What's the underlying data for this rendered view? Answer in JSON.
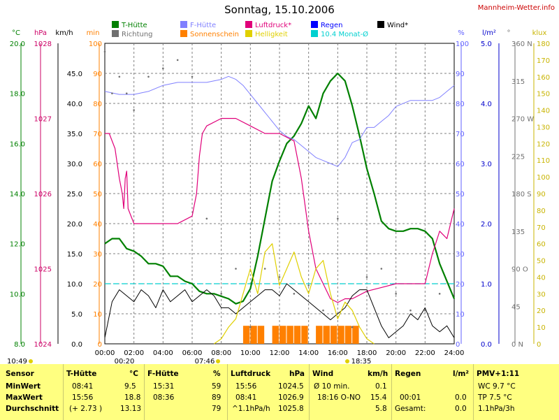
{
  "header": {
    "title": "Sonntag, 15.10.2006",
    "credit": "Mannheim-Wetter.info"
  },
  "legend": [
    {
      "label": "T-Hütte",
      "color": "#008000"
    },
    {
      "label": "Richtung",
      "color": "#707070"
    },
    {
      "label": "F-Hütte",
      "color": "#8080ff"
    },
    {
      "label": "Sonnenschein",
      "color": "#ff8000"
    },
    {
      "label": "Luftdruck*",
      "color": "#e0007a"
    },
    {
      "label": "Helligkeit",
      "color": "#e0d000"
    },
    {
      "label": "Regen",
      "color": "#0000ff"
    },
    {
      "label": "10.4 Monat-Ø",
      "color": "#00d0d0"
    },
    {
      "label": "Wind*",
      "color": "#000000"
    }
  ],
  "axes": {
    "unit_temp": "°C",
    "unit_hpa": "hPa",
    "unit_kmh": "km/h",
    "unit_min": "min",
    "unit_pct": "%",
    "unit_rain": "l/m²",
    "unit_deg": "°",
    "unit_klux": "klux",
    "temp_ticks": [
      "20.0",
      "18.0",
      "16.0",
      "14.0",
      "12.0",
      "10.0",
      "8.0"
    ],
    "hpa_ticks": [
      "1028",
      "1027",
      "1026",
      "1025",
      "1024"
    ],
    "kmh_ticks": [
      "45.0",
      "40.0",
      "35.0",
      "30.0",
      "25.0",
      "20.0",
      "15.0",
      "10.0",
      "5.0",
      "0.0"
    ],
    "min_ticks": [
      "100",
      "90",
      "80",
      "70",
      "60",
      "50",
      "40",
      "30",
      "20",
      "10",
      "0"
    ],
    "pct_ticks": [
      "100",
      "90",
      "80",
      "70",
      "60",
      "50",
      "40",
      "30",
      "20",
      "10",
      "0"
    ],
    "rain_ticks": [
      "5.0",
      "4.0",
      "3.0",
      "2.0",
      "1.0",
      "0.0"
    ],
    "deg_ticks": [
      "360 N",
      "315",
      "270 W",
      "225",
      "180 S",
      "135",
      "90 O",
      "45",
      "0 N"
    ],
    "klux_ticks": [
      "180",
      "170",
      "160",
      "150",
      "140",
      "130",
      "120",
      "110",
      "100",
      "90",
      "80",
      "70",
      "60",
      "50",
      "40",
      "30",
      "20",
      "10",
      "0"
    ],
    "time_ticks": [
      "00:00",
      "02:00",
      "04:00",
      "06:00",
      "08:00",
      "10:00",
      "12:00",
      "14:00",
      "16:00",
      "18:00",
      "20:00",
      "22:00",
      "24:00"
    ],
    "sun_labels": {
      "sunrise_left": "10:49",
      "dawn": "00:20",
      "sunrise": "07:46",
      "sunset": "18:35"
    }
  },
  "chart_data": {
    "type": "line",
    "x_unit": "hours",
    "xlim": [
      0,
      24
    ],
    "month_avg_temp": 10.4,
    "series": [
      {
        "name": "T-Hütte",
        "unit": "°C",
        "ylim": [
          8,
          20
        ],
        "x": [
          0,
          0.5,
          1,
          1.5,
          2,
          2.5,
          3,
          3.5,
          4,
          4.5,
          5,
          5.5,
          6,
          6.5,
          7,
          7.5,
          8,
          8.5,
          9,
          9.5,
          10,
          10.5,
          11,
          11.5,
          12,
          12.5,
          13,
          13.5,
          14,
          14.5,
          15,
          15.5,
          16,
          16.5,
          17,
          17.5,
          18,
          18.5,
          19,
          19.5,
          20,
          20.5,
          21,
          21.5,
          22,
          22.5,
          23,
          23.5,
          24
        ],
        "y": [
          12.0,
          12.2,
          12.2,
          11.8,
          11.7,
          11.5,
          11.2,
          11.2,
          11.1,
          10.7,
          10.7,
          10.5,
          10.4,
          10.1,
          10.0,
          10.0,
          9.9,
          9.8,
          9.6,
          9.7,
          10.2,
          11.5,
          13.0,
          14.5,
          15.3,
          16.0,
          16.3,
          16.8,
          17.5,
          17.0,
          18.0,
          18.5,
          18.8,
          18.5,
          17.5,
          16.3,
          15.0,
          14.0,
          12.9,
          12.6,
          12.5,
          12.5,
          12.6,
          12.6,
          12.5,
          12.2,
          11.2,
          10.5,
          9.8
        ]
      },
      {
        "name": "F-Hütte",
        "unit": "%",
        "ylim": [
          0,
          100
        ],
        "x": [
          0,
          1,
          2,
          3,
          4,
          5,
          6,
          7,
          8,
          8.5,
          9,
          9.5,
          10,
          10.5,
          11,
          11.5,
          12,
          12.5,
          13,
          13.5,
          14,
          14.5,
          15,
          15.5,
          16,
          16.5,
          17,
          17.5,
          18,
          18.5,
          19,
          19.5,
          20,
          21,
          22,
          22.5,
          23,
          23.5,
          24
        ],
        "y": [
          84,
          83,
          83,
          84,
          86,
          87,
          87,
          87,
          88,
          89,
          88,
          86,
          83,
          80,
          77,
          74,
          71,
          69,
          68,
          66,
          64,
          62,
          61,
          60,
          59,
          62,
          67,
          68,
          72,
          72,
          74,
          76,
          79,
          81,
          81,
          81,
          82,
          84,
          86
        ]
      },
      {
        "name": "Luftdruck*",
        "unit": "hPa",
        "ylim": [
          1024,
          1028
        ],
        "x": [
          0,
          0.3,
          0.7,
          1,
          1.2,
          1.3,
          1.4,
          1.5,
          1.6,
          2,
          3,
          4,
          5,
          6,
          6.3,
          6.5,
          6.7,
          7,
          8,
          9,
          10,
          11,
          12,
          13,
          13.5,
          14,
          14.5,
          15,
          15.5,
          16,
          16.5,
          17,
          17.5,
          18,
          19,
          20,
          21,
          22,
          22.5,
          23,
          23.5,
          24
        ],
        "y": [
          1026.8,
          1026.8,
          1026.6,
          1026.2,
          1026.0,
          1025.8,
          1026.2,
          1026.3,
          1025.8,
          1025.6,
          1025.6,
          1025.6,
          1025.6,
          1025.7,
          1026.0,
          1026.5,
          1026.8,
          1026.9,
          1027.0,
          1027.0,
          1026.9,
          1026.8,
          1026.8,
          1026.7,
          1026.2,
          1025.5,
          1025.0,
          1024.8,
          1024.6,
          1024.55,
          1024.6,
          1024.6,
          1024.65,
          1024.7,
          1024.75,
          1024.8,
          1024.8,
          1024.8,
          1025.2,
          1025.5,
          1025.4,
          1025.8
        ]
      },
      {
        "name": "Wind*",
        "unit": "km/h",
        "ylim": [
          0,
          50
        ],
        "x": [
          0,
          0.5,
          1,
          1.5,
          2,
          2.5,
          3,
          3.5,
          4,
          4.5,
          5,
          5.5,
          6,
          6.5,
          7,
          7.5,
          8,
          8.5,
          9,
          9.5,
          10,
          10.5,
          11,
          11.5,
          12,
          12.5,
          13,
          13.5,
          14,
          14.5,
          15,
          15.5,
          16,
          16.5,
          17,
          17.5,
          18,
          18.5,
          19,
          19.5,
          20,
          20.5,
          21,
          21.5,
          22,
          22.5,
          23,
          23.5,
          24
        ],
        "y": [
          1,
          7,
          9,
          8,
          7,
          9,
          8,
          6,
          9,
          7,
          8,
          9,
          7,
          8,
          9,
          8,
          6,
          6,
          5,
          6,
          7,
          8,
          9,
          9,
          8,
          10,
          9,
          8,
          7,
          6,
          5,
          4,
          5,
          6,
          8,
          9,
          9,
          6,
          3,
          1,
          2,
          3,
          5,
          4,
          6,
          3,
          2,
          3,
          1
        ]
      },
      {
        "name": "Helligkeit",
        "unit": "klux",
        "ylim": [
          0,
          180
        ],
        "x": [
          7.5,
          8,
          8.5,
          9,
          9.5,
          10,
          10.5,
          11,
          11.5,
          12,
          12.5,
          13,
          13.5,
          14,
          14.5,
          15,
          15.5,
          16,
          16.5,
          17,
          17.5,
          18,
          18.5
        ],
        "y": [
          0,
          3,
          10,
          15,
          30,
          45,
          30,
          55,
          60,
          35,
          45,
          55,
          40,
          30,
          45,
          50,
          30,
          15,
          25,
          20,
          10,
          3,
          0
        ]
      },
      {
        "name": "Sonnenschein",
        "unit": "min",
        "ylim": [
          0,
          100
        ],
        "x": [
          9.5,
          10,
          10.5,
          11,
          11.5,
          12,
          12.5,
          13,
          13.5,
          14,
          14.5,
          15,
          15.5,
          16,
          16.5,
          17
        ],
        "y": [
          6,
          6,
          6,
          0,
          6,
          6,
          6,
          6,
          6,
          0,
          6,
          6,
          6,
          6,
          6,
          6
        ]
      },
      {
        "name": "Richtung",
        "unit": "°",
        "ylim": [
          0,
          360
        ],
        "x": [
          0,
          0.5,
          1,
          1.5,
          2,
          3,
          4,
          5,
          6,
          7,
          8,
          9,
          10,
          11,
          12,
          13,
          14,
          15,
          16,
          17,
          18,
          19,
          20,
          21,
          22,
          23
        ],
        "y": [
          350,
          300,
          320,
          300,
          280,
          320,
          330,
          340,
          320,
          150,
          60,
          90,
          20,
          90,
          80,
          60,
          70,
          40,
          150,
          20,
          80,
          90,
          60,
          40,
          40,
          60
        ]
      }
    ]
  },
  "table": {
    "headers": [
      "Sensor",
      "T-Hütte",
      "°C",
      "F-Hütte",
      "%",
      "Luftdruck",
      "hPa",
      "Wind",
      "km/h",
      "Regen",
      "l/m²",
      "PMV+1:11"
    ],
    "rows": [
      [
        "MinWert",
        "08:41",
        "9.5",
        "15:31",
        "59",
        "15:56",
        "1024.5",
        "Ø 10 min.",
        "0.1",
        "",
        "",
        "WC 9.7 °C"
      ],
      [
        "MaxWert",
        "15:56",
        "18.8",
        "08:36",
        "89",
        "08:41",
        "1026.9",
        "18:16  O-NO",
        "15.4",
        "00:01",
        "0.0",
        "TP 7.5 °C"
      ],
      [
        "Durchschnitt",
        "(+ 2.73 )",
        "13.13",
        "",
        "79",
        "^1.1hPa/h",
        "1025.8",
        "",
        "5.8",
        "Gesamt:",
        "0.0",
        "1.1hPa/3h"
      ]
    ]
  }
}
